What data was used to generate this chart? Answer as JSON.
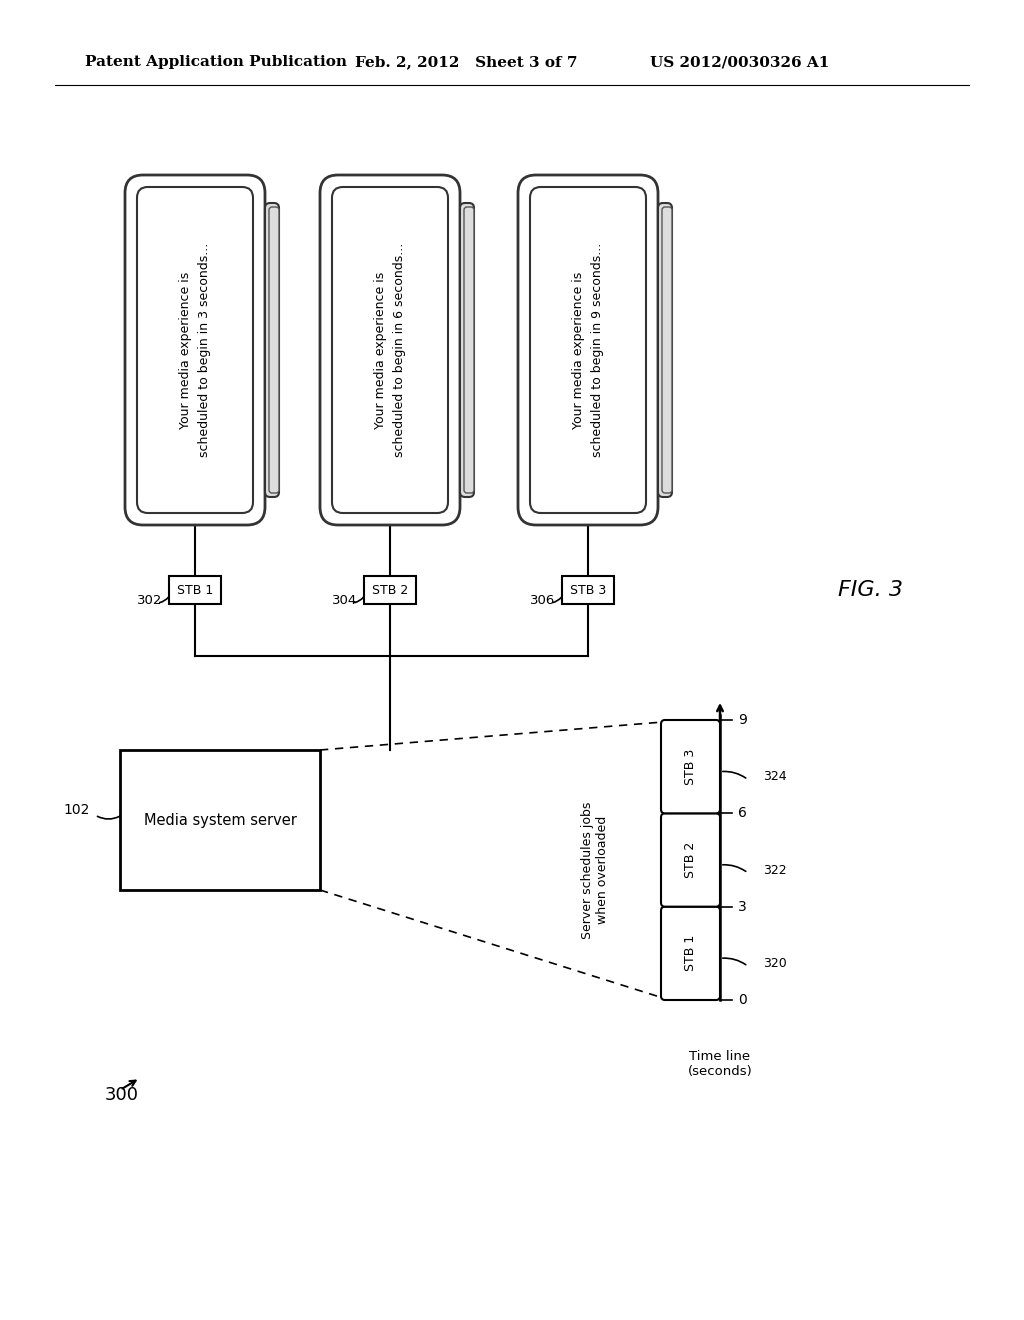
{
  "bg_color": "#ffffff",
  "header_left": "Patent Application Publication",
  "header_mid": "Feb. 2, 2012   Sheet 3 of 7",
  "header_right": "US 2012/0030326 A1",
  "fig_label": "FIG. 3",
  "diagram_label": "300",
  "tv_texts": [
    "Your media experience is\nscheduled to begin in 3 seconds...",
    "Your media experience is\nscheduled to begin in 6 seconds...",
    "Your media experience is\nscheduled to begin in 9 seconds..."
  ],
  "stb_labels": [
    "STB 1",
    "STB 2",
    "STB 3"
  ],
  "stb_refs": [
    "302",
    "304",
    "306"
  ],
  "server_label": "Media system server",
  "server_ref": "102",
  "timeline_label": "Time line\n(seconds)",
  "timeline_ticks": [
    0,
    3,
    6,
    9
  ],
  "timeline_bars": [
    {
      "label": "STB 1",
      "ref": "320",
      "start": 0,
      "end": 3
    },
    {
      "label": "STB 2",
      "ref": "322",
      "start": 3,
      "end": 6
    },
    {
      "label": "STB 3",
      "ref": "324",
      "start": 6,
      "end": 9
    }
  ],
  "schedule_text": "Server schedules jobs\nwhen overloaded"
}
